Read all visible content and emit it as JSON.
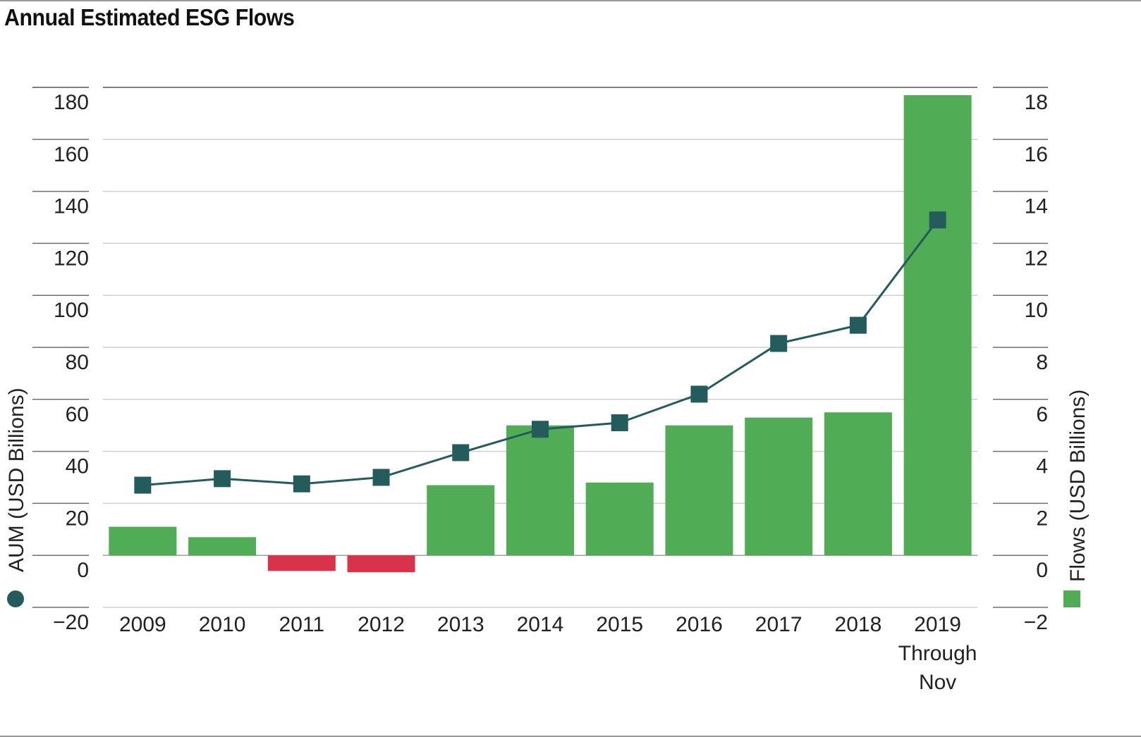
{
  "header": {
    "title": "Annual Estimated ESG Flows"
  },
  "chart_data": {
    "type": "bar",
    "title": "Annual Estimated ESG Flows",
    "categories": [
      "2009",
      "2010",
      "2011",
      "2012",
      "2013",
      "2014",
      "2015",
      "2016",
      "2017",
      "2018",
      "2019 Through Nov"
    ],
    "category_lines": [
      [
        "2009"
      ],
      [
        "2010"
      ],
      [
        "2011"
      ],
      [
        "2012"
      ],
      [
        "2013"
      ],
      [
        "2014"
      ],
      [
        "2015"
      ],
      [
        "2016"
      ],
      [
        "2017"
      ],
      [
        "2018"
      ],
      [
        "2019",
        "Through",
        "Nov"
      ]
    ],
    "series": [
      {
        "name": "Flows (USD Billions)",
        "type": "bar",
        "axis": "right",
        "values": [
          1.1,
          0.7,
          -0.6,
          -0.65,
          2.7,
          5.0,
          2.8,
          5.0,
          5.3,
          5.5,
          17.7
        ],
        "color_positive": "#51ad55",
        "color_negative": "#d8334a"
      },
      {
        "name": "AUM (USD Billions)",
        "type": "line",
        "axis": "left",
        "values": [
          27,
          29.5,
          27.5,
          30,
          39.5,
          48.5,
          51,
          62,
          81.5,
          88.5,
          129
        ],
        "color": "#245b5b"
      }
    ],
    "y_left": {
      "label": "AUM (USD Billions)",
      "ylim": [
        -20,
        180
      ],
      "ticks": [
        "180",
        "160",
        "140",
        "120",
        "100",
        "80",
        "60",
        "40",
        "20",
        "0",
        "−20"
      ],
      "tick_values": [
        180,
        160,
        140,
        120,
        100,
        80,
        60,
        40,
        20,
        0,
        -20
      ]
    },
    "y_right": {
      "label": "Flows (USD Billions)",
      "ylim": [
        -2,
        18
      ],
      "ticks": [
        "18",
        "16",
        "14",
        "12",
        "10",
        "8",
        "6",
        "4",
        "2",
        "0",
        "−2"
      ],
      "tick_values": [
        18,
        16,
        14,
        12,
        10,
        8,
        6,
        4,
        2,
        0,
        -2
      ]
    },
    "grid": true,
    "legend": "axis-labels"
  }
}
